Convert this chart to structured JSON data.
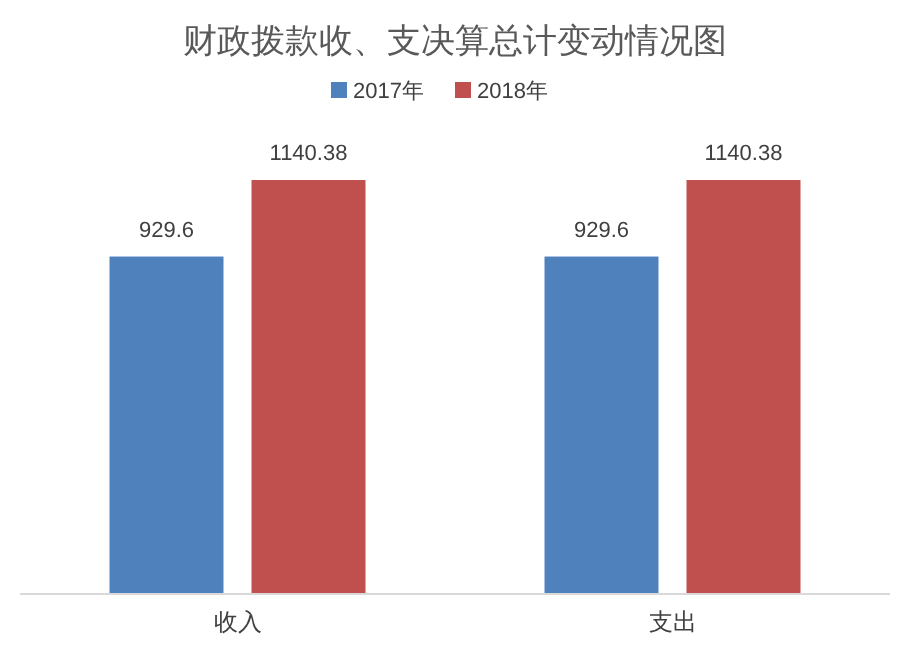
{
  "chart_data": {
    "type": "bar",
    "title": "财政拨款收、支决算总计变动情况图",
    "categories": [
      "收入",
      "支出"
    ],
    "series": [
      {
        "name": "2017年",
        "color": "#4f81bd",
        "values": [
          929.6,
          929.6
        ]
      },
      {
        "name": "2018年",
        "color": "#c0504d",
        "values": [
          1140.38,
          1140.38
        ]
      }
    ],
    "data_labels": true,
    "legend": "top"
  }
}
